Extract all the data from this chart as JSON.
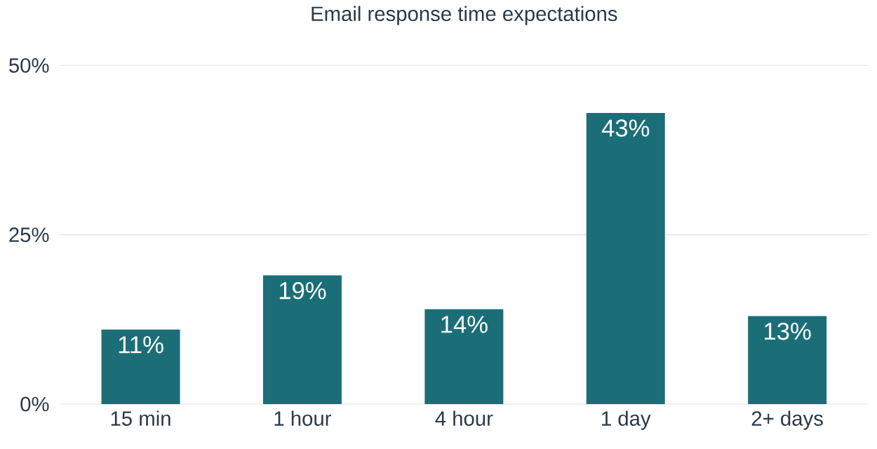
{
  "chart_data": {
    "type": "bar",
    "title": "Email response time expectations",
    "categories": [
      "15 min",
      "1 hour",
      "4 hour",
      "1 day",
      "2+ days"
    ],
    "values": [
      11,
      19,
      14,
      43,
      13
    ],
    "color": "#1b6e78",
    "ylim": [
      0,
      50
    ],
    "yticks": [
      {
        "value": 0,
        "label": "0%"
      },
      {
        "value": 25,
        "label": "25%"
      },
      {
        "value": 50,
        "label": "50%"
      }
    ],
    "grid": "y",
    "value_labels": [
      "11%",
      "19%",
      "14%",
      "43%",
      "13%"
    ]
  }
}
